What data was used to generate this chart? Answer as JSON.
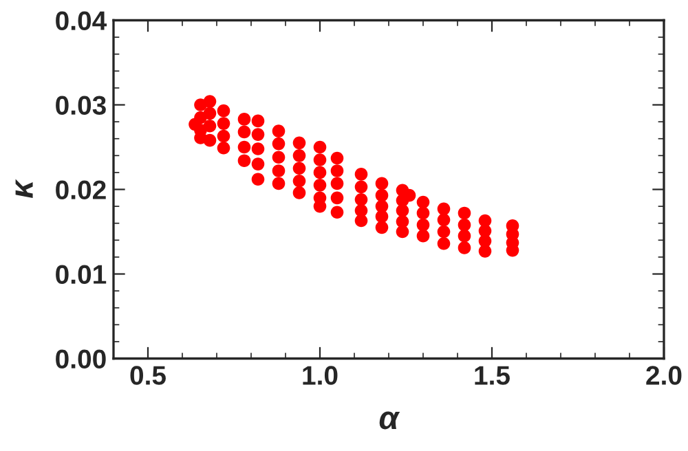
{
  "chart_data": {
    "type": "scatter",
    "xlabel": "α",
    "ylabel": "κ",
    "xlim": [
      0.4,
      2.0
    ],
    "xticks": [
      {
        "value": 0.5,
        "label": "0.5"
      },
      {
        "value": 1.0,
        "label": "1.0"
      },
      {
        "value": 1.5,
        "label": "1.5"
      },
      {
        "value": 2.0,
        "label": "2.0"
      }
    ],
    "ylim": [
      0.0,
      0.04
    ],
    "yticks": [
      {
        "value": 0.0,
        "label": "0.00"
      },
      {
        "value": 0.01,
        "label": "0.01"
      },
      {
        "value": 0.02,
        "label": "0.02"
      },
      {
        "value": 0.03,
        "label": "0.03"
      },
      {
        "value": 0.04,
        "label": "0.04"
      }
    ],
    "marker": "circle",
    "series": [
      {
        "color": "#ff0000",
        "x": [
          0.637,
          0.653,
          0.653,
          0.653,
          0.653,
          0.68,
          0.68,
          0.68,
          0.68,
          0.72,
          0.72,
          0.72,
          0.72,
          0.78,
          0.78,
          0.78,
          0.78,
          0.82,
          0.82,
          0.82,
          0.82,
          0.82,
          0.88,
          0.88,
          0.88,
          0.88,
          0.88,
          0.94,
          0.94,
          0.94,
          0.94,
          0.94,
          1.0,
          1.0,
          1.0,
          1.0,
          1.0,
          1.0,
          1.05,
          1.05,
          1.05,
          1.05,
          1.05,
          1.12,
          1.12,
          1.12,
          1.12,
          1.12,
          1.18,
          1.18,
          1.18,
          1.18,
          1.18,
          1.24,
          1.24,
          1.24,
          1.24,
          1.24,
          1.26,
          1.3,
          1.3,
          1.3,
          1.3,
          1.36,
          1.36,
          1.36,
          1.36,
          1.42,
          1.42,
          1.42,
          1.42,
          1.48,
          1.48,
          1.48,
          1.48,
          1.56,
          1.56,
          1.56,
          1.56
        ],
        "values": [
          0.0277,
          0.03,
          0.0285,
          0.027,
          0.0261,
          0.0304,
          0.029,
          0.0275,
          0.0258,
          0.0293,
          0.0278,
          0.0263,
          0.0249,
          0.0283,
          0.0268,
          0.025,
          0.0234,
          0.0281,
          0.0265,
          0.0248,
          0.023,
          0.0212,
          0.0269,
          0.0254,
          0.0238,
          0.0222,
          0.0207,
          0.0255,
          0.024,
          0.0225,
          0.021,
          0.0196,
          0.025,
          0.0235,
          0.022,
          0.0205,
          0.019,
          0.018,
          0.0237,
          0.0222,
          0.0207,
          0.019,
          0.0173,
          0.0218,
          0.0203,
          0.0188,
          0.0175,
          0.0163,
          0.0207,
          0.0193,
          0.018,
          0.0168,
          0.0155,
          0.0199,
          0.0187,
          0.0175,
          0.0162,
          0.015,
          0.0193,
          0.0185,
          0.0172,
          0.0158,
          0.0145,
          0.0177,
          0.0164,
          0.015,
          0.0136,
          0.0172,
          0.0158,
          0.0145,
          0.0131,
          0.0163,
          0.0151,
          0.0139,
          0.0127,
          0.0157,
          0.0147,
          0.0137,
          0.0128
        ]
      }
    ]
  }
}
